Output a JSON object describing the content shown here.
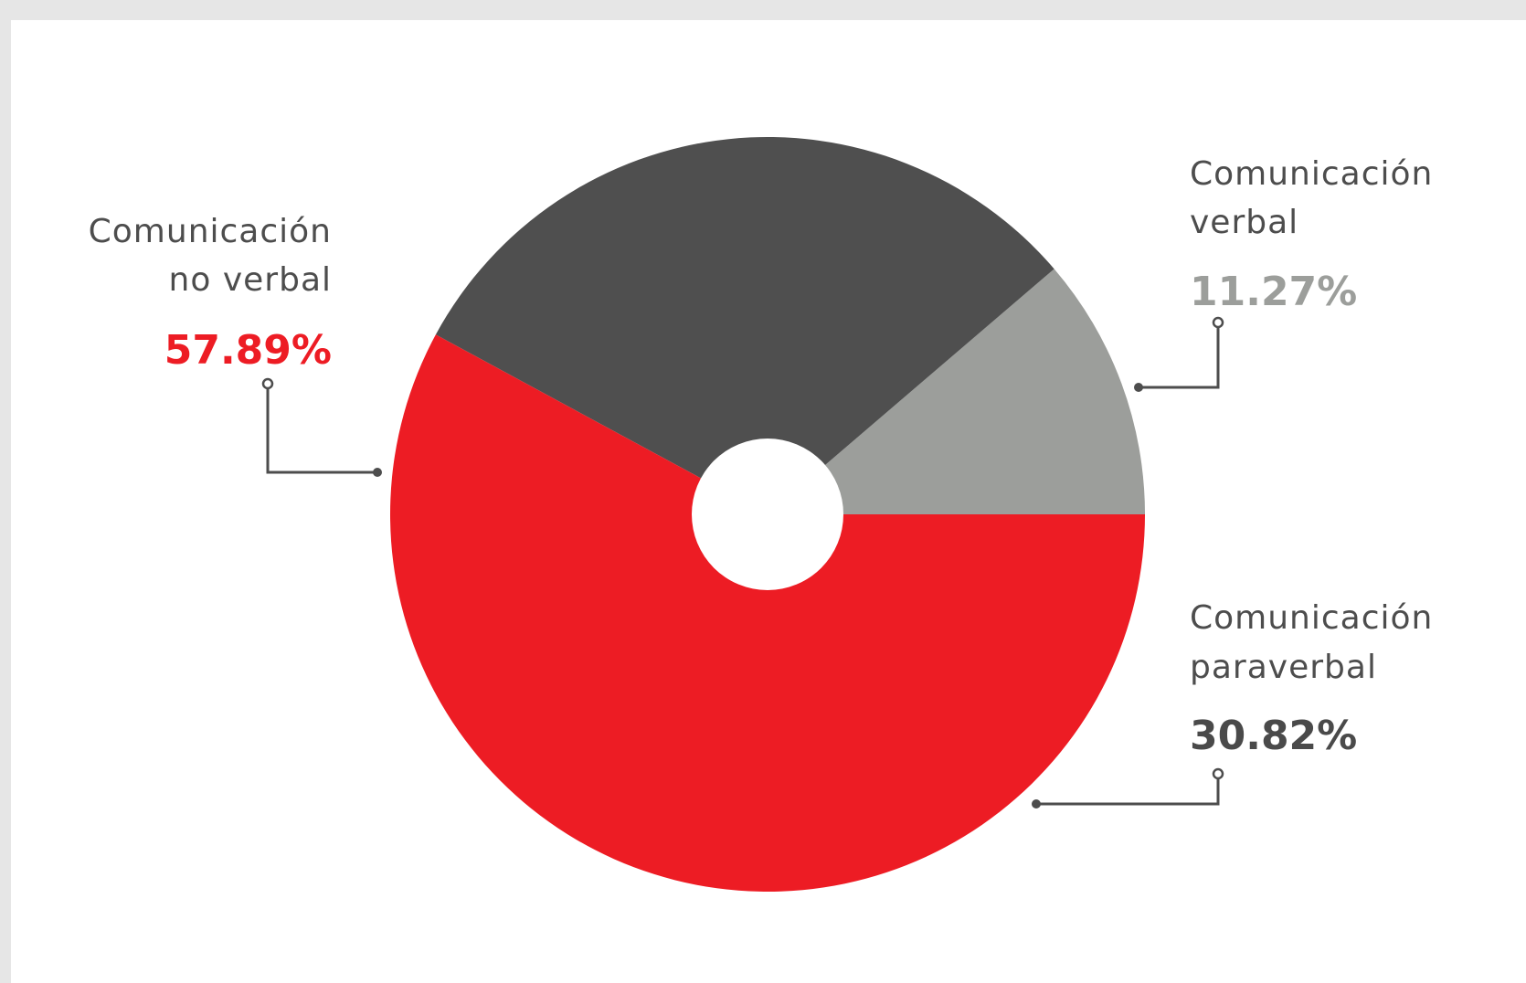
{
  "chart_data": {
    "type": "pie",
    "donut": true,
    "slices": [
      {
        "label_line1": "Comunicación",
        "label_line2": "verbal",
        "value": 11.27,
        "value_text": "11.27%",
        "color": "#9c9e9b",
        "value_color": "#9c9e9b"
      },
      {
        "label_line1": "Comunicación",
        "label_line2": "paraverbal",
        "value": 30.82,
        "value_text": "30.82%",
        "color": "#4f4f4f",
        "value_color": "#4a4a4a"
      },
      {
        "label_line1": "Comunicación",
        "label_line2": "no verbal",
        "value": 57.89,
        "value_text": "57.89%",
        "color": "#ed1c24",
        "value_color": "#ed1c24"
      }
    ],
    "start_angle_deg": 0,
    "direction": "counterclockwise-from-right",
    "legend": "callout labels"
  }
}
